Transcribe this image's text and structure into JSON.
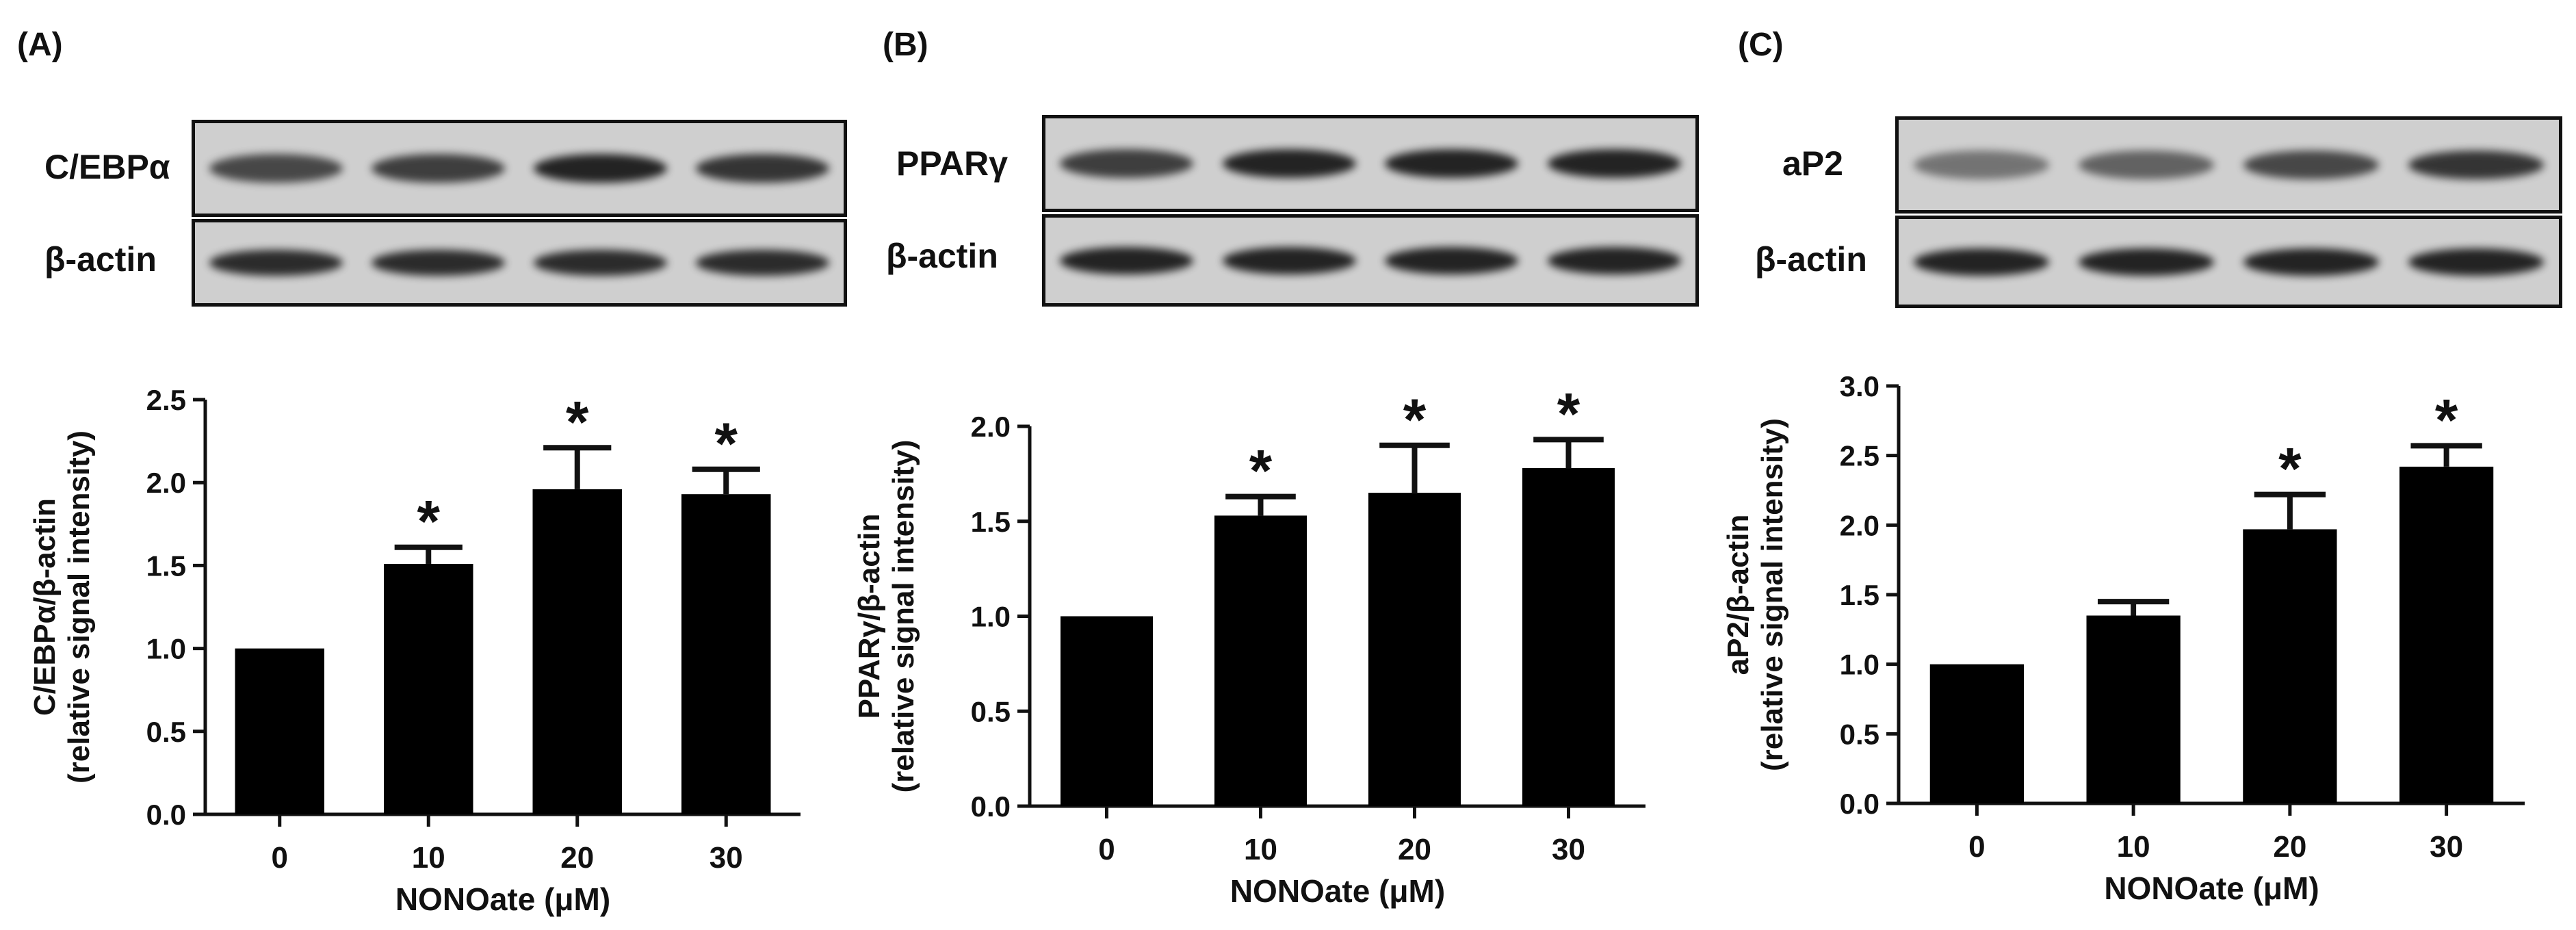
{
  "panels": [
    {
      "label": "(A)",
      "blot": {
        "target": "C/EBPα",
        "control": "β-actin",
        "target_band_intensity": [
          0.75,
          0.8,
          0.95,
          0.85
        ],
        "control_band_intensity": [
          0.9,
          0.9,
          0.9,
          0.9
        ]
      }
    },
    {
      "label": "(B)",
      "blot": {
        "target": "PPARγ",
        "control": "β-actin",
        "target_band_intensity": [
          0.8,
          0.95,
          0.95,
          0.95
        ],
        "control_band_intensity": [
          0.95,
          0.95,
          0.95,
          0.95
        ]
      }
    },
    {
      "label": "(C)",
      "blot": {
        "target": "aP2",
        "control": "β-actin",
        "target_band_intensity": [
          0.5,
          0.6,
          0.75,
          0.85
        ],
        "control_band_intensity": [
          0.95,
          0.95,
          0.95,
          0.95
        ]
      }
    }
  ],
  "chart_data": [
    {
      "type": "bar",
      "categories": [
        "0",
        "10",
        "20",
        "30"
      ],
      "values": [
        1.0,
        1.51,
        1.96,
        1.93
      ],
      "errors": [
        0,
        0.1,
        0.25,
        0.15
      ],
      "significant": [
        "",
        "*",
        "*",
        "*"
      ],
      "xlabel": "NONOate (μM)",
      "ylabel": [
        "C/EBPα/β-actin",
        "(relative signal intensity)"
      ],
      "ylim": [
        0,
        2.5
      ],
      "yticks": [
        "0.0",
        "0.5",
        "1.0",
        "1.5",
        "2.0",
        "2.5"
      ],
      "bar_color": "#000000"
    },
    {
      "type": "bar",
      "categories": [
        "0",
        "10",
        "20",
        "30"
      ],
      "values": [
        1.0,
        1.53,
        1.65,
        1.78
      ],
      "errors": [
        0,
        0.1,
        0.25,
        0.15
      ],
      "significant": [
        "",
        "*",
        "*",
        "*"
      ],
      "xlabel": "NONOate (μM)",
      "ylabel": [
        "PPARγ/β-actin",
        "(relative signal intensity)"
      ],
      "ylim": [
        0,
        2.0
      ],
      "yticks": [
        "0.0",
        "0.5",
        "1.0",
        "1.5",
        "2.0"
      ],
      "bar_color": "#000000"
    },
    {
      "type": "bar",
      "categories": [
        "0",
        "10",
        "20",
        "30"
      ],
      "values": [
        1.0,
        1.35,
        1.97,
        2.42
      ],
      "errors": [
        0,
        0.1,
        0.25,
        0.15
      ],
      "significant": [
        "",
        "",
        "*",
        "*"
      ],
      "xlabel": "NONOate (μM)",
      "ylabel": [
        "aP2/β-actin",
        "(relative signal intensity)"
      ],
      "ylim": [
        0,
        3.0
      ],
      "yticks": [
        "0.0",
        "0.5",
        "1.0",
        "1.5",
        "2.0",
        "2.5",
        "3.0"
      ],
      "bar_color": "#000000"
    }
  ]
}
